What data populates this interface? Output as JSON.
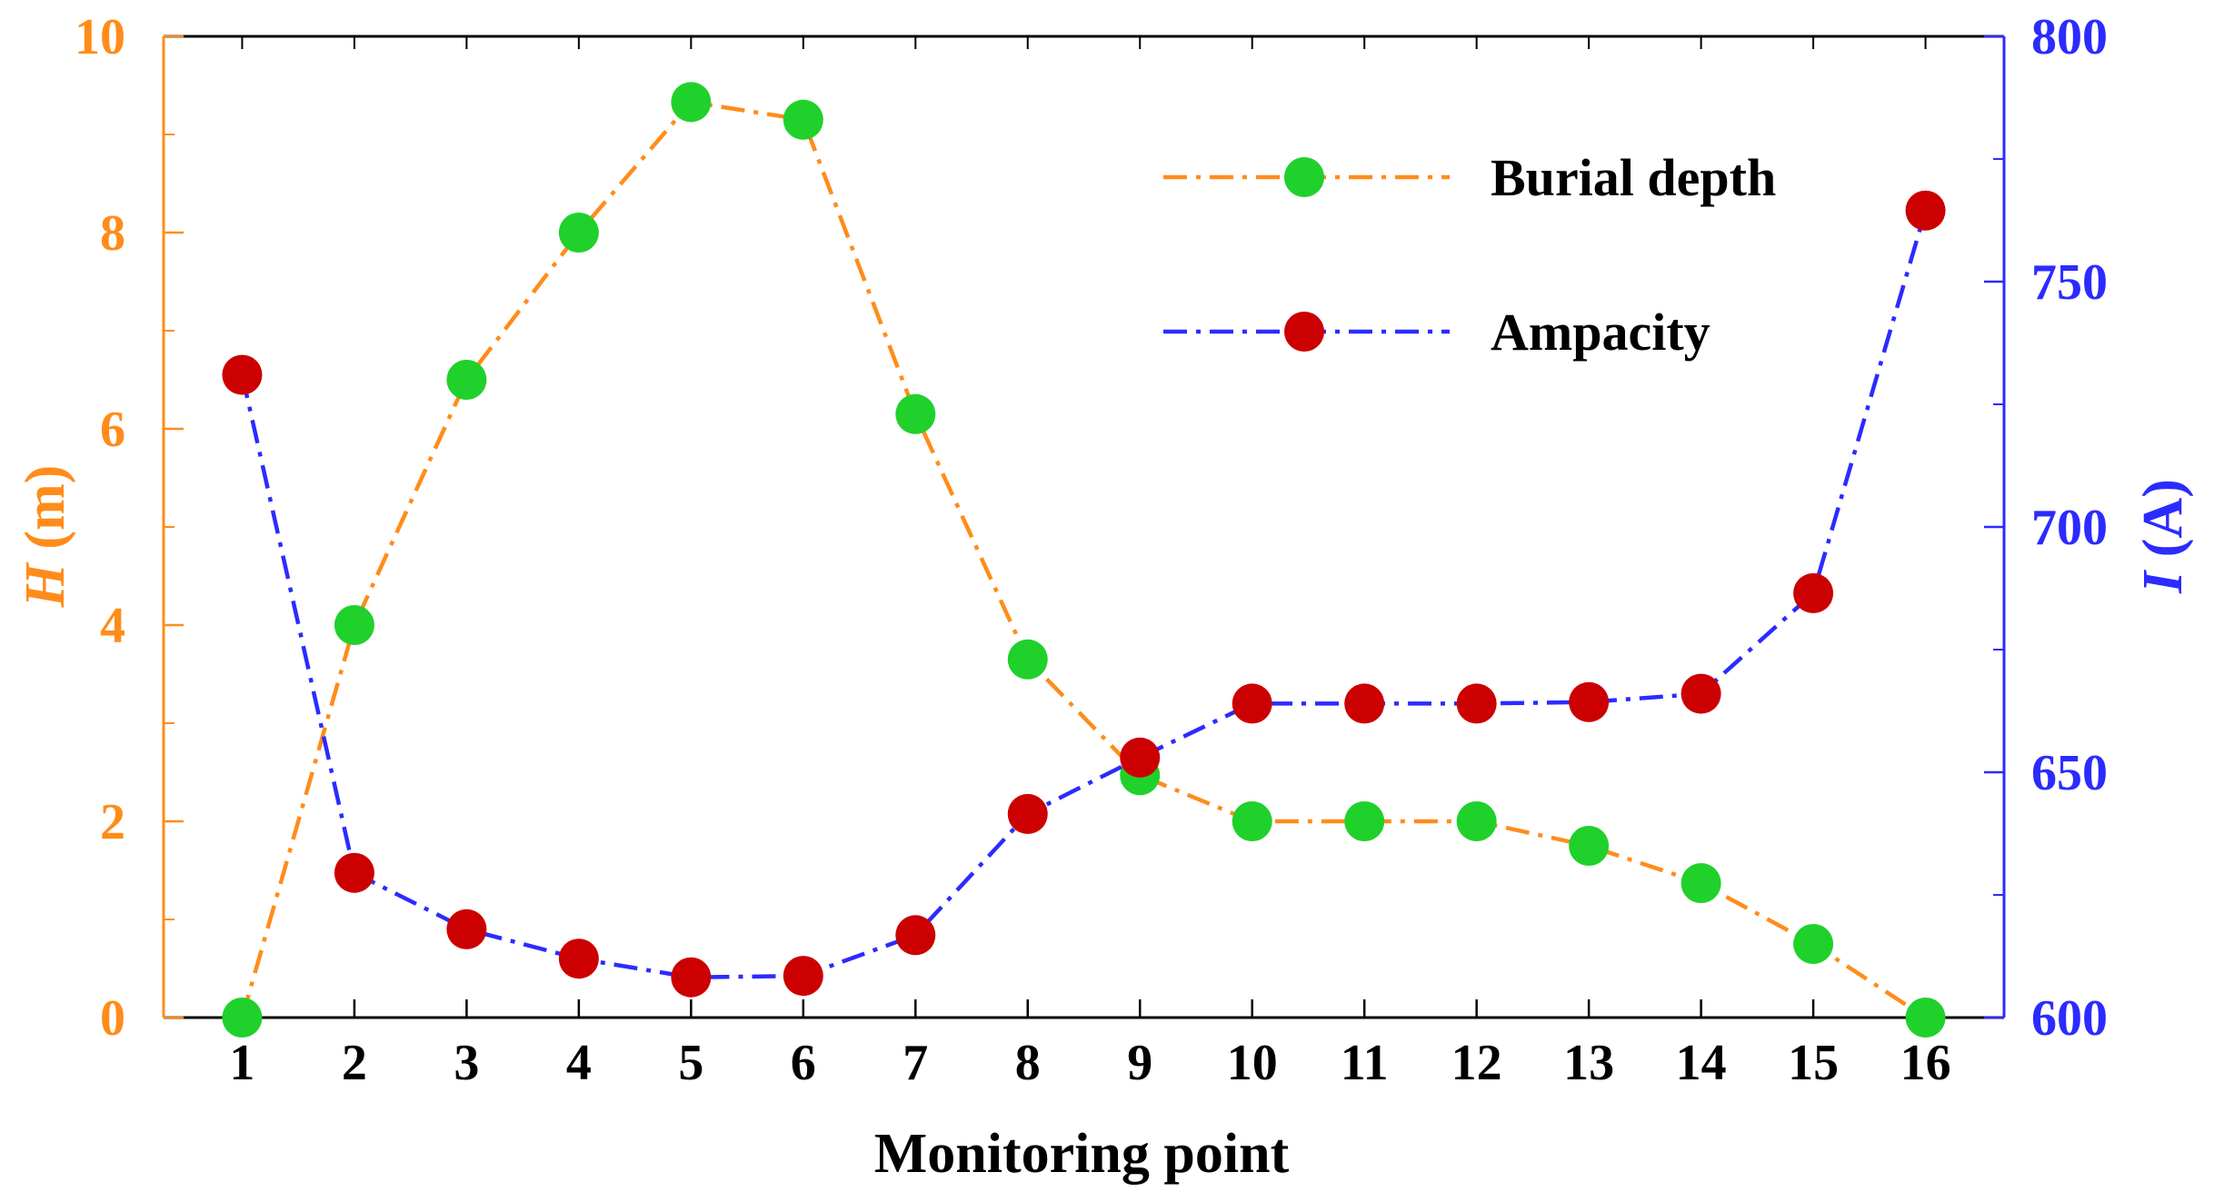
{
  "chart_data": {
    "type": "line",
    "xlabel": "Monitoring point",
    "ylabel_left": {
      "symbol": "H",
      "unit": " (m)"
    },
    "ylabel_right": {
      "symbol": "I",
      "unit": " (A)"
    },
    "x": [
      1,
      2,
      3,
      4,
      5,
      6,
      7,
      8,
      9,
      10,
      11,
      12,
      13,
      14,
      15,
      16
    ],
    "xlim": [
      0.3,
      16.7
    ],
    "ylim_left": [
      0,
      10
    ],
    "ylim_right": [
      600,
      800
    ],
    "y_ticks_left": [
      0,
      2,
      4,
      6,
      8,
      10
    ],
    "y_ticks_right": [
      600,
      650,
      700,
      750,
      800
    ],
    "series": [
      {
        "name": "Burial depth",
        "axis": "left",
        "line_color": "#ff8c1a",
        "marker_color": "#1fd12a",
        "line_style": "dash-dot",
        "values": [
          0,
          4.0,
          6.5,
          8.0,
          9.33,
          9.15,
          6.15,
          3.65,
          2.47,
          2.0,
          2.0,
          2.0,
          1.75,
          1.37,
          0.75,
          0
        ]
      },
      {
        "name": "Ampacity",
        "axis": "right",
        "line_color": "#2b2bff",
        "marker_color": "#cc0000",
        "line_style": "dash-dot",
        "values": [
          731,
          629.5,
          618,
          612,
          608.2,
          608.5,
          616.8,
          641.5,
          653,
          664,
          664,
          664,
          664.3,
          666,
          686.5,
          764.5
        ]
      }
    ],
    "legend_position": "top-right",
    "colors": {
      "left_axis": "#ff8c1a",
      "right_axis": "#2b2bff",
      "frame": "#000000"
    }
  }
}
